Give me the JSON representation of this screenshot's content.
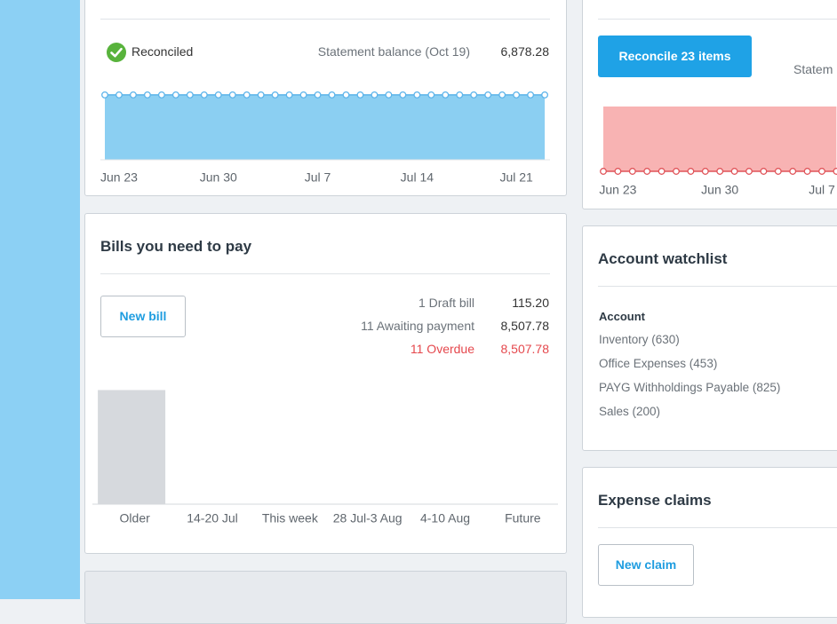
{
  "bank_panel": {
    "status": "Reconciled",
    "statement_label": "Statement balance (Oct 19)",
    "statement_balance": "6,878.28",
    "chart_data": {
      "type": "area",
      "categories": [
        null,
        "Jun 23",
        null,
        null,
        null,
        null,
        null,
        null,
        "Jun 30",
        null,
        null,
        null,
        null,
        null,
        null,
        "Jul 7",
        null,
        null,
        null,
        null,
        null,
        null,
        "Jul 14",
        null,
        null,
        null,
        null,
        null,
        null,
        "Jul 21",
        null,
        null
      ],
      "values": [
        6878.28,
        6878.28,
        6878.28,
        6878.28,
        6878.28,
        6878.28,
        6878.28,
        6878.28,
        6878.28,
        6878.28,
        6878.28,
        6878.28,
        6878.28,
        6878.28,
        6878.28,
        6878.28,
        6878.28,
        6878.28,
        6878.28,
        6878.28,
        6878.28,
        6878.28,
        6878.28,
        6878.28,
        6878.28,
        6878.28,
        6878.28,
        6878.28,
        6878.28,
        6878.28,
        6878.28,
        6878.28
      ],
      "ylim": [
        0,
        8000
      ],
      "color": "#8bcff2",
      "line_color": "#5db4ea"
    }
  },
  "reconcile_panel": {
    "button": "Reconcile 23 items",
    "statement_label": "Statem",
    "chart_data": {
      "type": "area",
      "categories": [
        null,
        "Jun 23",
        null,
        null,
        null,
        null,
        null,
        null,
        "Jun 30",
        null,
        null,
        null,
        null,
        null,
        null,
        "Jul 7",
        null
      ],
      "values": [
        -7300,
        -7300,
        -7300,
        -7300,
        -7300,
        -7300,
        -7300,
        -7300,
        -7300,
        -7300,
        -7300,
        -7300,
        -7300,
        -7300,
        -7300,
        -7300,
        -7300
      ],
      "ylim": [
        -8000,
        1000
      ],
      "color": "#f8b3b3",
      "line_color": "#e0555a"
    }
  },
  "bills_panel": {
    "title": "Bills you need to pay",
    "button": "New bill",
    "summary": [
      {
        "label": "1 Draft bill",
        "amount": "115.20"
      },
      {
        "label": "11 Awaiting payment",
        "amount": "8,507.78"
      },
      {
        "label": "11 Overdue",
        "amount": "8,507.78"
      }
    ],
    "chart_data": {
      "type": "bar",
      "categories": [
        "Older",
        "14-20 Jul",
        "This week",
        "28 Jul-3 Aug",
        "4-10 Aug",
        "Future"
      ],
      "values": [
        8507.78,
        0,
        0,
        0,
        0,
        0
      ],
      "ylim": [
        0,
        9000
      ],
      "color": "#d6d9dd"
    }
  },
  "watchlist_panel": {
    "title": "Account watchlist",
    "column_header": "Account",
    "accounts": [
      "Inventory (630)",
      "Office Expenses (453)",
      "PAYG Withholdings Payable (825)",
      "Sales (200)"
    ]
  },
  "expense_panel": {
    "title": "Expense claims",
    "button": "New claim"
  }
}
